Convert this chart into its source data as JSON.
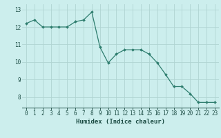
{
  "x": [
    0,
    1,
    2,
    3,
    4,
    5,
    6,
    7,
    8,
    9,
    10,
    11,
    12,
    13,
    14,
    15,
    16,
    17,
    18,
    19,
    20,
    21,
    22,
    23
  ],
  "y": [
    12.2,
    12.4,
    12.0,
    12.0,
    12.0,
    12.0,
    12.3,
    12.4,
    12.85,
    10.85,
    9.95,
    10.45,
    10.7,
    10.7,
    10.7,
    10.45,
    9.95,
    9.3,
    8.6,
    8.6,
    8.2,
    7.7,
    7.7,
    7.7
  ],
  "line_color": "#2e7d6e",
  "marker": "D",
  "marker_size": 2.0,
  "line_width": 0.9,
  "bg_color": "#cceeed",
  "grid_color": "#b0d4d2",
  "xlabel": "Humidex (Indice chaleur)",
  "xlabel_fontsize": 6.5,
  "yticks": [
    8,
    9,
    10,
    11,
    12,
    13
  ],
  "xticks": [
    0,
    1,
    2,
    3,
    4,
    5,
    6,
    7,
    8,
    9,
    10,
    11,
    12,
    13,
    14,
    15,
    16,
    17,
    18,
    19,
    20,
    21,
    22,
    23
  ],
  "xlim": [
    -0.5,
    23.5
  ],
  "ylim": [
    7.4,
    13.3
  ],
  "tick_fontsize": 5.5,
  "tick_color": "#1a4a42",
  "xlabel_color": "#1a4a42"
}
